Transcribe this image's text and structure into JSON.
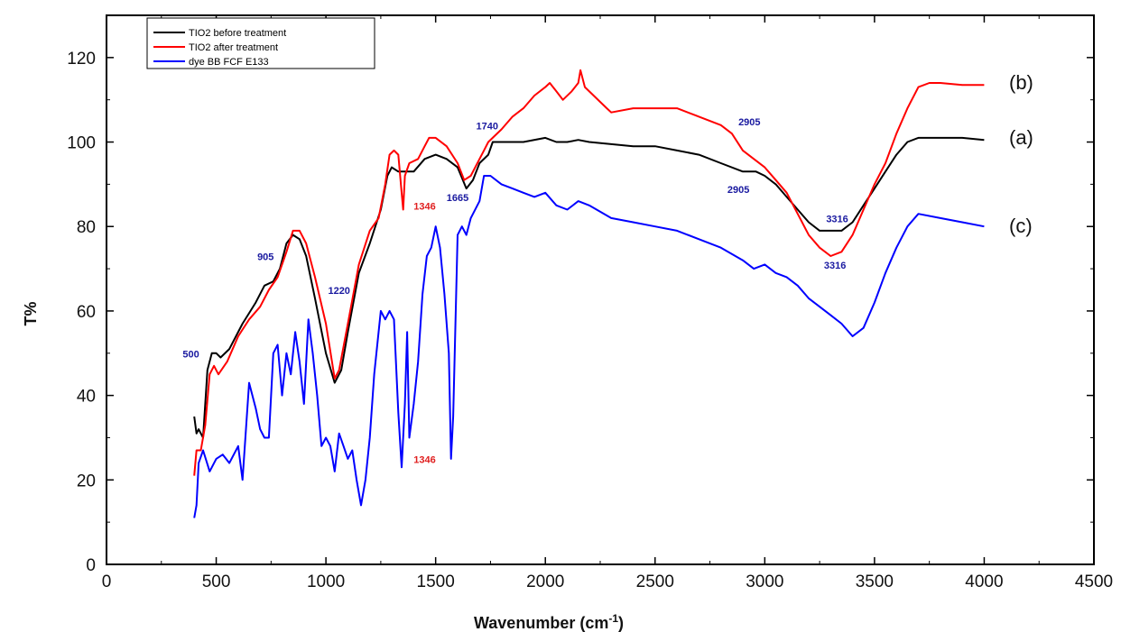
{
  "chart_data": {
    "type": "line",
    "xlabel": "Wavenumber (cm",
    "xlabel_sup": "-1",
    "xlabel_end": ")",
    "ylabel": "T%",
    "xlim": [
      0,
      4500
    ],
    "ylim": [
      0,
      130
    ],
    "x_ticks": [
      0,
      500,
      1000,
      1500,
      2000,
      2500,
      3000,
      3500,
      4000,
      4500
    ],
    "y_ticks": [
      0,
      20,
      40,
      60,
      80,
      100,
      120
    ],
    "grid": false,
    "legend_position": "top-left",
    "series": [
      {
        "name": "TIO2 before treatment",
        "label": "(a)",
        "color": "#000000",
        "points": [
          [
            400,
            35
          ],
          [
            410,
            31
          ],
          [
            420,
            32
          ],
          [
            440,
            30
          ],
          [
            460,
            46
          ],
          [
            480,
            50
          ],
          [
            500,
            50
          ],
          [
            520,
            49
          ],
          [
            560,
            51
          ],
          [
            620,
            57
          ],
          [
            680,
            62
          ],
          [
            720,
            66
          ],
          [
            760,
            67
          ],
          [
            790,
            70
          ],
          [
            820,
            76
          ],
          [
            850,
            78
          ],
          [
            880,
            77
          ],
          [
            910,
            73
          ],
          [
            950,
            63
          ],
          [
            1000,
            50
          ],
          [
            1040,
            43
          ],
          [
            1070,
            46
          ],
          [
            1100,
            55
          ],
          [
            1150,
            69
          ],
          [
            1200,
            76
          ],
          [
            1250,
            84
          ],
          [
            1280,
            92
          ],
          [
            1300,
            94
          ],
          [
            1330,
            93
          ],
          [
            1360,
            93
          ],
          [
            1400,
            93
          ],
          [
            1450,
            96
          ],
          [
            1500,
            97
          ],
          [
            1550,
            96
          ],
          [
            1600,
            94
          ],
          [
            1640,
            89
          ],
          [
            1670,
            91
          ],
          [
            1700,
            95
          ],
          [
            1740,
            97
          ],
          [
            1760,
            100
          ],
          [
            1800,
            100
          ],
          [
            1900,
            100
          ],
          [
            2000,
            101
          ],
          [
            2050,
            100
          ],
          [
            2100,
            100
          ],
          [
            2150,
            100.5
          ],
          [
            2200,
            100
          ],
          [
            2300,
            99.5
          ],
          [
            2400,
            99
          ],
          [
            2500,
            99
          ],
          [
            2600,
            98
          ],
          [
            2700,
            97
          ],
          [
            2800,
            95
          ],
          [
            2900,
            93
          ],
          [
            2960,
            93
          ],
          [
            3000,
            92
          ],
          [
            3050,
            90
          ],
          [
            3100,
            87
          ],
          [
            3150,
            84
          ],
          [
            3200,
            81
          ],
          [
            3250,
            79
          ],
          [
            3300,
            79
          ],
          [
            3350,
            79
          ],
          [
            3400,
            81
          ],
          [
            3450,
            85
          ],
          [
            3500,
            89
          ],
          [
            3550,
            93
          ],
          [
            3600,
            97
          ],
          [
            3650,
            100
          ],
          [
            3700,
            101
          ],
          [
            3800,
            101
          ],
          [
            3900,
            101
          ],
          [
            4000,
            100.5
          ]
        ]
      },
      {
        "name": "TIO2 after treatment",
        "label": "(b)",
        "color": "#ff0000",
        "points": [
          [
            400,
            21
          ],
          [
            410,
            27
          ],
          [
            430,
            27
          ],
          [
            450,
            33
          ],
          [
            470,
            45
          ],
          [
            490,
            47
          ],
          [
            510,
            45
          ],
          [
            550,
            48
          ],
          [
            600,
            54
          ],
          [
            650,
            58
          ],
          [
            700,
            61
          ],
          [
            740,
            65
          ],
          [
            780,
            68
          ],
          [
            820,
            74
          ],
          [
            850,
            79
          ],
          [
            880,
            79
          ],
          [
            910,
            76
          ],
          [
            950,
            68
          ],
          [
            1000,
            57
          ],
          [
            1040,
            44
          ],
          [
            1060,
            46
          ],
          [
            1100,
            57
          ],
          [
            1150,
            71
          ],
          [
            1200,
            79
          ],
          [
            1240,
            82
          ],
          [
            1270,
            90
          ],
          [
            1290,
            97
          ],
          [
            1310,
            98
          ],
          [
            1330,
            97
          ],
          [
            1345,
            88
          ],
          [
            1352,
            84
          ],
          [
            1360,
            92
          ],
          [
            1380,
            95
          ],
          [
            1420,
            96
          ],
          [
            1450,
            99
          ],
          [
            1470,
            101
          ],
          [
            1500,
            101
          ],
          [
            1550,
            99
          ],
          [
            1600,
            95
          ],
          [
            1630,
            91
          ],
          [
            1660,
            92
          ],
          [
            1700,
            96
          ],
          [
            1720,
            98
          ],
          [
            1740,
            100
          ],
          [
            1800,
            103
          ],
          [
            1850,
            106
          ],
          [
            1900,
            108
          ],
          [
            1950,
            111
          ],
          [
            2000,
            113
          ],
          [
            2020,
            114
          ],
          [
            2050,
            112
          ],
          [
            2080,
            110
          ],
          [
            2120,
            112
          ],
          [
            2150,
            114
          ],
          [
            2160,
            117
          ],
          [
            2180,
            113
          ],
          [
            2220,
            111
          ],
          [
            2280,
            108
          ],
          [
            2300,
            107
          ],
          [
            2400,
            108
          ],
          [
            2500,
            108
          ],
          [
            2600,
            108
          ],
          [
            2700,
            106
          ],
          [
            2800,
            104
          ],
          [
            2850,
            102
          ],
          [
            2900,
            98
          ],
          [
            2950,
            96
          ],
          [
            3000,
            94
          ],
          [
            3050,
            91
          ],
          [
            3100,
            88
          ],
          [
            3150,
            83
          ],
          [
            3200,
            78
          ],
          [
            3250,
            75
          ],
          [
            3300,
            73
          ],
          [
            3350,
            74
          ],
          [
            3400,
            78
          ],
          [
            3450,
            84
          ],
          [
            3500,
            90
          ],
          [
            3550,
            95
          ],
          [
            3600,
            102
          ],
          [
            3650,
            108
          ],
          [
            3700,
            113
          ],
          [
            3750,
            114
          ],
          [
            3800,
            114
          ],
          [
            3900,
            113.5
          ],
          [
            4000,
            113.5
          ]
        ]
      },
      {
        "name": "dye BB FCF E133",
        "label": "(c)",
        "color": "#0000ff",
        "points": [
          [
            400,
            11
          ],
          [
            410,
            14
          ],
          [
            420,
            24
          ],
          [
            440,
            27
          ],
          [
            470,
            22
          ],
          [
            500,
            25
          ],
          [
            530,
            26
          ],
          [
            560,
            24
          ],
          [
            600,
            28
          ],
          [
            620,
            20
          ],
          [
            650,
            43
          ],
          [
            680,
            37
          ],
          [
            700,
            32
          ],
          [
            720,
            30
          ],
          [
            740,
            30
          ],
          [
            760,
            50
          ],
          [
            780,
            52
          ],
          [
            800,
            40
          ],
          [
            820,
            50
          ],
          [
            840,
            45
          ],
          [
            860,
            55
          ],
          [
            880,
            48
          ],
          [
            900,
            38
          ],
          [
            920,
            58
          ],
          [
            940,
            50
          ],
          [
            960,
            40
          ],
          [
            980,
            28
          ],
          [
            1000,
            30
          ],
          [
            1020,
            28
          ],
          [
            1040,
            22
          ],
          [
            1060,
            31
          ],
          [
            1080,
            28
          ],
          [
            1100,
            25
          ],
          [
            1120,
            27
          ],
          [
            1140,
            20
          ],
          [
            1160,
            14
          ],
          [
            1180,
            20
          ],
          [
            1200,
            30
          ],
          [
            1220,
            45
          ],
          [
            1250,
            60
          ],
          [
            1270,
            58
          ],
          [
            1290,
            60
          ],
          [
            1310,
            58
          ],
          [
            1330,
            36
          ],
          [
            1345,
            23
          ],
          [
            1360,
            38
          ],
          [
            1370,
            55
          ],
          [
            1380,
            30
          ],
          [
            1400,
            38
          ],
          [
            1420,
            48
          ],
          [
            1440,
            64
          ],
          [
            1460,
            73
          ],
          [
            1480,
            75
          ],
          [
            1500,
            80
          ],
          [
            1520,
            75
          ],
          [
            1540,
            64
          ],
          [
            1560,
            50
          ],
          [
            1570,
            25
          ],
          [
            1580,
            35
          ],
          [
            1600,
            78
          ],
          [
            1620,
            80
          ],
          [
            1640,
            78
          ],
          [
            1660,
            82
          ],
          [
            1700,
            86
          ],
          [
            1720,
            92
          ],
          [
            1750,
            92
          ],
          [
            1800,
            90
          ],
          [
            1850,
            89
          ],
          [
            1900,
            88
          ],
          [
            1950,
            87
          ],
          [
            2000,
            88
          ],
          [
            2050,
            85
          ],
          [
            2100,
            84
          ],
          [
            2150,
            86
          ],
          [
            2200,
            85
          ],
          [
            2300,
            82
          ],
          [
            2400,
            81
          ],
          [
            2500,
            80
          ],
          [
            2600,
            79
          ],
          [
            2700,
            77
          ],
          [
            2800,
            75
          ],
          [
            2900,
            72
          ],
          [
            2950,
            70
          ],
          [
            3000,
            71
          ],
          [
            3050,
            69
          ],
          [
            3100,
            68
          ],
          [
            3150,
            66
          ],
          [
            3200,
            63
          ],
          [
            3250,
            61
          ],
          [
            3300,
            59
          ],
          [
            3350,
            57
          ],
          [
            3400,
            54
          ],
          [
            3450,
            56
          ],
          [
            3500,
            62
          ],
          [
            3550,
            69
          ],
          [
            3600,
            75
          ],
          [
            3650,
            80
          ],
          [
            3700,
            83
          ],
          [
            3800,
            82
          ],
          [
            3900,
            81
          ],
          [
            4000,
            80
          ]
        ]
      }
    ],
    "annotations": [
      {
        "text": "905",
        "x": 725,
        "y": 72,
        "color": "#1a1aa0"
      },
      {
        "text": "500",
        "x": 385,
        "y": 49,
        "color": "#1a1aa0"
      },
      {
        "text": "1220",
        "x": 1060,
        "y": 64,
        "color": "#1a1aa0"
      },
      {
        "text": "1346",
        "x": 1450,
        "y": 84,
        "color": "#e02020"
      },
      {
        "text": "1665",
        "x": 1600,
        "y": 86,
        "color": "#1a1aa0"
      },
      {
        "text": "1740",
        "x": 1735,
        "y": 103,
        "color": "#1a1aa0"
      },
      {
        "text": "1346",
        "x": 1450,
        "y": 24,
        "color": "#e02020"
      },
      {
        "text": "2905",
        "x": 2930,
        "y": 104,
        "color": "#1a1aa0"
      },
      {
        "text": "2905",
        "x": 2880,
        "y": 88,
        "color": "#1a1aa0"
      },
      {
        "text": "3316",
        "x": 3330,
        "y": 81,
        "color": "#1a1aa0"
      },
      {
        "text": "3316",
        "x": 3320,
        "y": 70,
        "color": "#1a1aa0"
      }
    ]
  }
}
